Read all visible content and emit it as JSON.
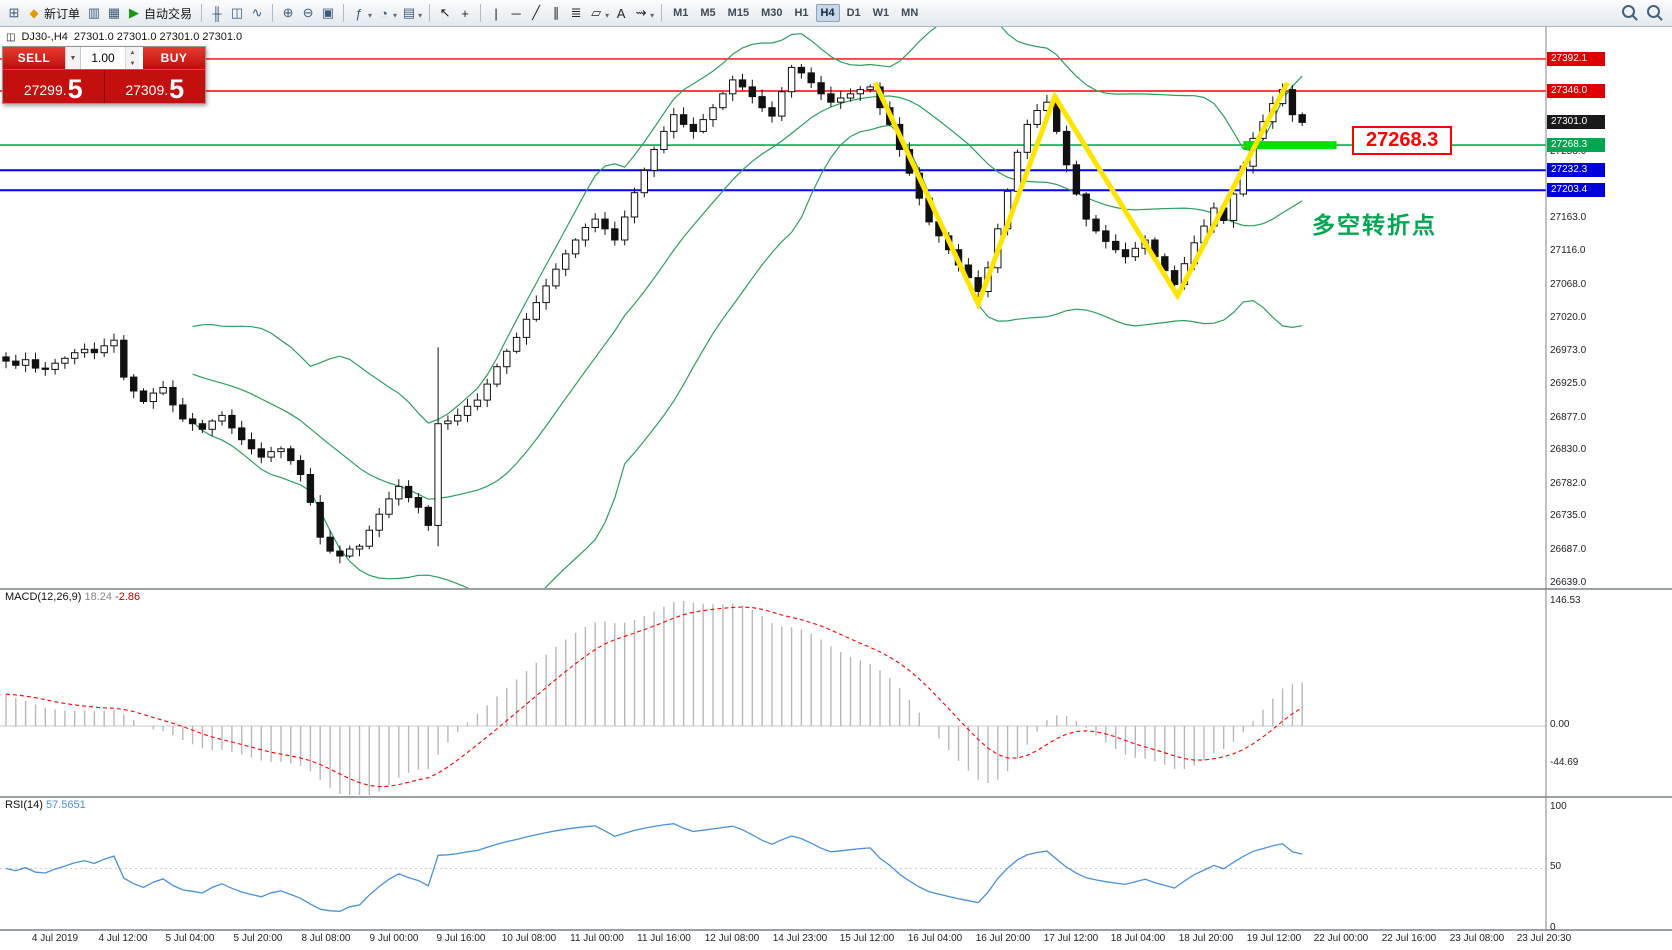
{
  "toolbar": {
    "items": [
      {
        "icon": "new-chart-icon"
      },
      {
        "icon": "new-order-icon",
        "label": "新订单"
      },
      {
        "icon": "chart-profiles-icon"
      },
      {
        "icon": "data-window-icon"
      },
      {
        "icon": "auto-trading-icon",
        "label": "自动交易"
      },
      {
        "sep": true
      },
      {
        "icon": "bar-chart-icon"
      },
      {
        "icon": "candlestick-chart-icon"
      },
      {
        "icon": "line-chart-icon"
      },
      {
        "sep": true
      },
      {
        "icon": "zoom-in-icon"
      },
      {
        "icon": "zoom-out-icon"
      },
      {
        "icon": "tile-windows-icon"
      },
      {
        "sep": true
      },
      {
        "icon": "indicators-icon",
        "dropdown": true
      },
      {
        "icon": "periods-icon",
        "dropdown": true
      },
      {
        "icon": "templates-icon",
        "dropdown": true
      },
      {
        "sep": true
      },
      {
        "icon": "cursor-icon"
      },
      {
        "icon": "crosshair-icon"
      },
      {
        "sep": true
      },
      {
        "icon": "vertical-line-icon"
      },
      {
        "icon": "horizontal-line-icon"
      },
      {
        "icon": "trendline-icon"
      },
      {
        "icon": "channel-icon"
      },
      {
        "icon": "fibonacci-icon"
      },
      {
        "icon": "shapes-icon",
        "dropdown": true
      },
      {
        "icon": "text-icon"
      },
      {
        "icon": "arrows-icon",
        "dropdown": true
      },
      {
        "sep": true
      }
    ],
    "timeframes": [
      "M1",
      "M5",
      "M15",
      "M30",
      "H1",
      "H4",
      "D1",
      "W1",
      "MN"
    ],
    "active_timeframe": "H4",
    "right_icons": [
      "search-icon",
      "zoom-icon"
    ]
  },
  "chart": {
    "title_symbol": "DJ30-,H4",
    "title_quotes": "27301.0 27301.0 27301.0 27301.0"
  },
  "trade_panel": {
    "sell_label": "SELL",
    "buy_label": "BUY",
    "volume": "1.00",
    "sell_price": {
      "main": "27299.",
      "big": "5"
    },
    "buy_price": {
      "main": "27309.",
      "big": "5"
    }
  },
  "price_axis": {
    "tags": [
      {
        "price": 27392.1,
        "label": "27392.1",
        "bg": "#e00000"
      },
      {
        "price": 27346.0,
        "label": "27346.0",
        "bg": "#e00000"
      },
      {
        "price": 27301.0,
        "label": "27301.0",
        "bg": "#1a1a1a"
      },
      {
        "price": 27268.3,
        "label": "27268.3",
        "bg": "#00a651"
      },
      {
        "price": 27232.3,
        "label": "27232.3",
        "bg": "#0000dd"
      },
      {
        "price": 27203.4,
        "label": "27203.4",
        "bg": "#0000dd"
      }
    ],
    "labels": [
      27258.0,
      27163.0,
      27116.0,
      27068.0,
      27020.0,
      26973.0,
      26925.0,
      26877.0,
      26830.0,
      26782.0,
      26735.0,
      26687.0,
      26639.0
    ]
  },
  "annotations": {
    "price_callout": "27268.3",
    "pivot_text": "多空转折点",
    "zigzag": [
      {
        "i": 88.5,
        "p": 27358
      },
      {
        "i": 99.0,
        "p": 27040
      },
      {
        "i": 106.8,
        "p": 27338
      },
      {
        "i": 119.3,
        "p": 27052
      },
      {
        "i": 130.5,
        "p": 27358
      }
    ],
    "green_segment": {
      "i1": 126,
      "i2": 135.5,
      "p": 27268.3
    },
    "colors": {
      "zigzag": "#ffe400",
      "segment": "#00e000",
      "callout": "#ff0000",
      "pivot": "#00a651"
    }
  },
  "macd_panel": {
    "name": "MACD(12,26,9)",
    "value_main": "18.24",
    "value_signal": "-2.86",
    "axis": [
      "146.53",
      "0.00",
      "-44.69"
    ]
  },
  "rsi_panel": {
    "name": "RSI(14)",
    "value": "57.5651",
    "axis": [
      "100",
      "50",
      "0"
    ]
  },
  "time_axis": {
    "labels": [
      "4 Jul 2019",
      "4 Jul 12:00",
      "5 Jul 04:00",
      "5 Jul 20:00",
      "8 Jul 08:00",
      "9 Jul 00:00",
      "9 Jul 16:00",
      "10 Jul 08:00",
      "11 Jul 00:00",
      "11 Jul 16:00",
      "12 Jul 08:00",
      "14 Jul 23:00",
      "15 Jul 12:00",
      "16 Jul 04:00",
      "16 Jul 20:00",
      "17 Jul 12:00",
      "18 Jul 04:00",
      "18 Jul 20:00",
      "19 Jul 12:00",
      "22 Jul 00:00",
      "22 Jul 16:00",
      "23 Jul 08:00",
      "23 Jul 20:30"
    ]
  },
  "chart_data": {
    "type": "candlestick",
    "symbol": "DJ30-",
    "timeframe": "H4",
    "ylim": [
      26632,
      27438
    ],
    "closes": [
      26958,
      26952,
      26960,
      26948,
      26946,
      26955,
      26962,
      26970,
      26975,
      26970,
      26980,
      26988,
      26935,
      26915,
      26900,
      26912,
      26920,
      26895,
      26875,
      26868,
      26860,
      26872,
      26880,
      26862,
      26845,
      26832,
      26820,
      26828,
      26832,
      26815,
      26795,
      26755,
      26705,
      26685,
      26678,
      26688,
      26692,
      26715,
      26738,
      26760,
      26778,
      26762,
      26748,
      26722,
      26868,
      26872,
      26880,
      26893,
      26902,
      26925,
      26950,
      26972,
      26992,
      27018,
      27042,
      27066,
      27090,
      27112,
      27132,
      27150,
      27162,
      27148,
      27132,
      27165,
      27200,
      27232,
      27262,
      27288,
      27312,
      27298,
      27288,
      27305,
      27322,
      27342,
      27362,
      27352,
      27338,
      27322,
      27310,
      27345,
      27380,
      27372,
      27358,
      27342,
      27330,
      27336,
      27342,
      27348,
      27352,
      27322,
      27298,
      27262,
      27228,
      27192,
      27158,
      27138,
      27118,
      27096,
      27078,
      27058,
      27092,
      27148,
      27202,
      27258,
      27298,
      27318,
      27330,
      27288,
      27240,
      27198,
      27162,
      27145,
      27130,
      27118,
      27108,
      27120,
      27132,
      27108,
      27088,
      27068,
      27098,
      27128,
      27152,
      27178,
      27160,
      27198,
      27238,
      27278,
      27302,
      27328,
      27348,
      27312,
      27301
    ],
    "wick_overrides": {
      "44": {
        "high": 26978,
        "low": 26692
      }
    },
    "hlines": [
      {
        "price": 27392.1,
        "color": "#ff0000",
        "w": 1.4
      },
      {
        "price": 27346.0,
        "color": "#ff0000",
        "w": 1.4
      },
      {
        "price": 27268.3,
        "color": "#00b050",
        "w": 1.6
      },
      {
        "price": 27232.3,
        "color": "#0000ff",
        "w": 2
      },
      {
        "price": 27203.4,
        "color": "#0000ff",
        "w": 2
      }
    ],
    "indicators": {
      "bollinger": {
        "period": 20,
        "deviation": 2,
        "color": "#2e9e5e"
      },
      "macd": {
        "fast": 12,
        "slow": 26,
        "signal": 9,
        "hist_color": "#b8b8b8",
        "signal_color": "#ff0000",
        "axis_max": 146.53,
        "axis_min": -44.69
      },
      "rsi": {
        "period": 14,
        "color": "#4a90d9",
        "last": 57.5651
      }
    }
  }
}
